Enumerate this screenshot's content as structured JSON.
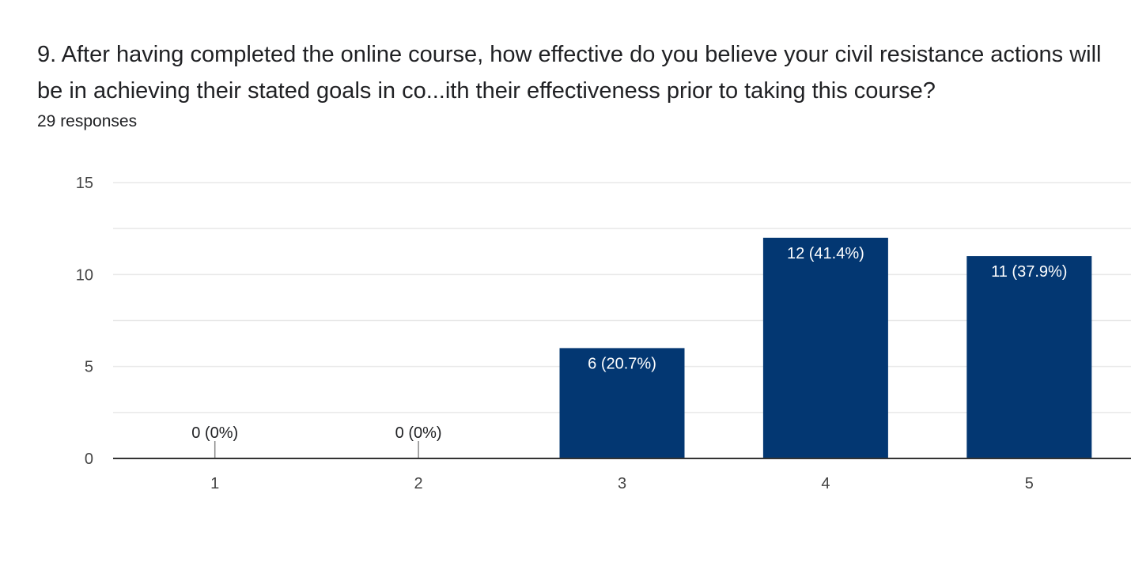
{
  "question": {
    "title": "9. After having completed the online course, how effective do you believe your civil resistance actions will be in achieving their stated goals in co...ith their effectiveness prior to taking this course?",
    "responses": "29 responses"
  },
  "colors": {
    "bar": "#033772",
    "text": "#202124",
    "grid": "#e8e8e8",
    "axis": "#333333"
  },
  "chart_data": {
    "type": "bar",
    "categories": [
      "1",
      "2",
      "3",
      "4",
      "5"
    ],
    "values": [
      0,
      0,
      6,
      12,
      11
    ],
    "data_labels": [
      "0 (0%)",
      "0 (0%)",
      "6 (20.7%)",
      "12 (41.4%)",
      "11 (37.9%)"
    ],
    "ylim": [
      0,
      15
    ],
    "yticks": [
      0,
      5,
      10,
      15
    ],
    "grid": true,
    "legend": "none"
  }
}
